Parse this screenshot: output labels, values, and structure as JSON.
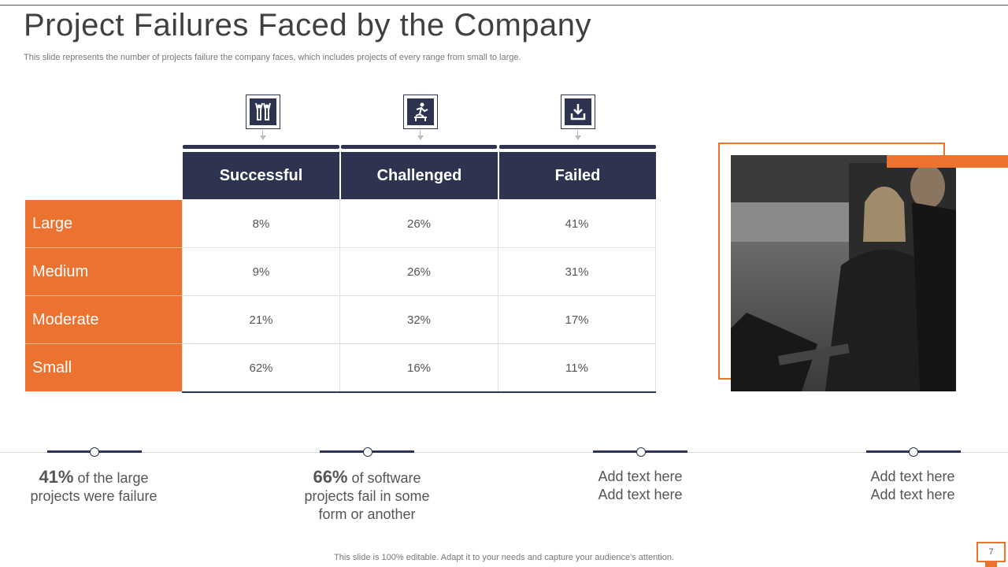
{
  "slide": {
    "title": "Project Failures Faced by the Company",
    "subtitle": "This slide represents the number of projects failure the company faces, which includes projects of every range from small to large."
  },
  "icons": [
    "people-celebrate-icon",
    "hurdle-jump-icon",
    "download-tray-icon"
  ],
  "table": {
    "columns": [
      "Successful",
      "Challenged",
      "Failed"
    ],
    "rows": [
      {
        "label": "Large",
        "values": [
          "8%",
          "26%",
          "41%"
        ]
      },
      {
        "label": "Medium",
        "values": [
          "9%",
          "26%",
          "31%"
        ]
      },
      {
        "label": "Moderate",
        "values": [
          "21%",
          "32%",
          "17%"
        ]
      },
      {
        "label": "Small",
        "values": [
          "62%",
          "16%",
          "11%"
        ]
      }
    ]
  },
  "stats": [
    {
      "big": "41%",
      "text1": " of the large",
      "text2": "projects were failure",
      "text3": ""
    },
    {
      "big": "66%",
      "text1": " of software",
      "text2": "projects fail in some",
      "text3": "form or another"
    },
    {
      "big": "",
      "text1": "Add text here",
      "text2": "Add text here",
      "text3": ""
    },
    {
      "big": "",
      "text1": "Add text here",
      "text2": "Add text here",
      "text3": ""
    }
  ],
  "footer": "This slide is 100% editable. Adapt it to your needs and capture your audience's attention.",
  "page_number": "7",
  "colors": {
    "navy": "#2e3350",
    "orange": "#ec7230"
  }
}
